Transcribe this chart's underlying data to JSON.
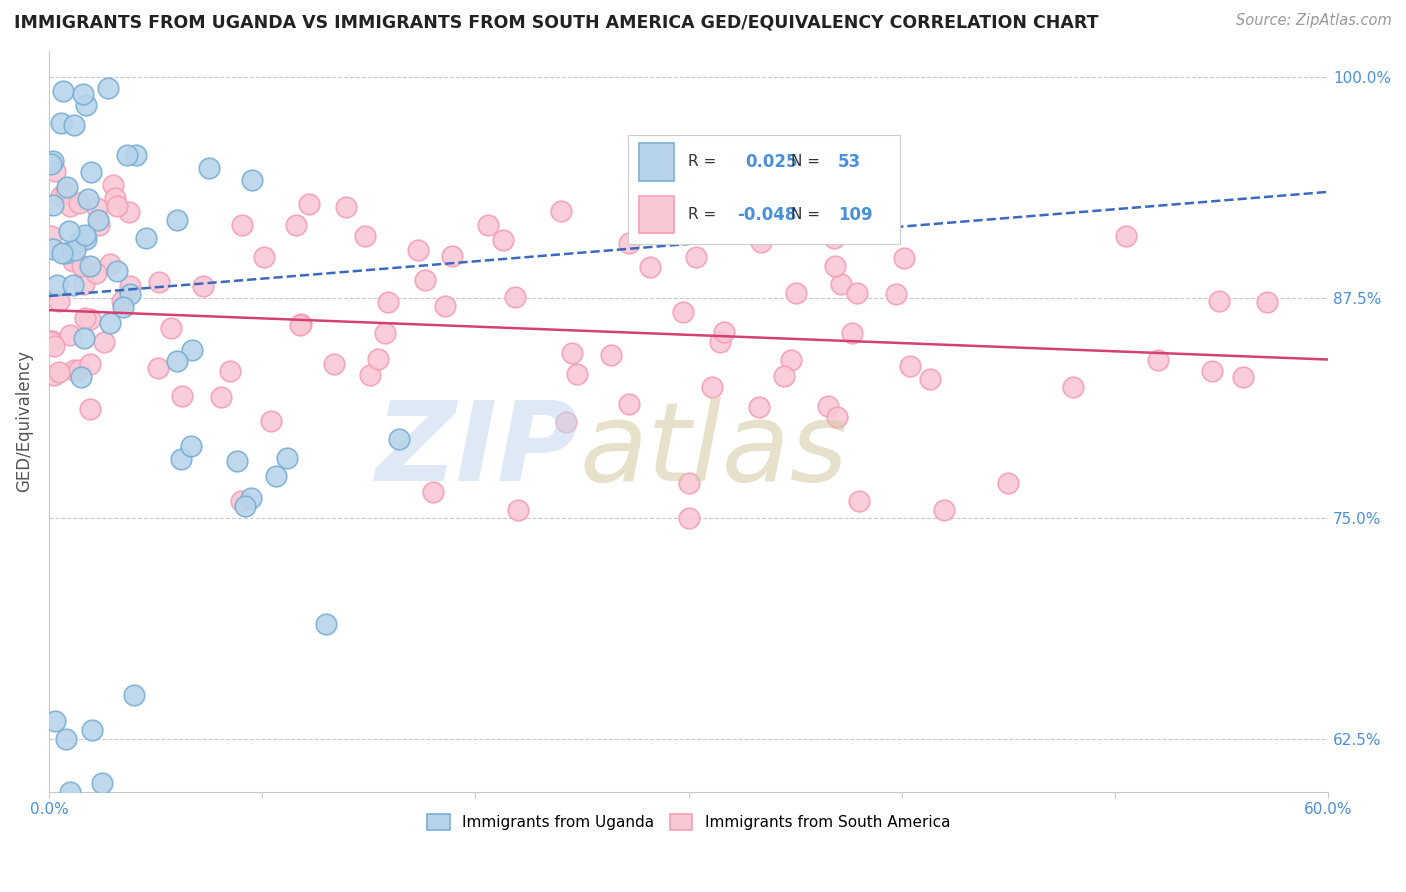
{
  "title": "IMMIGRANTS FROM UGANDA VS IMMIGRANTS FROM SOUTH AMERICA GED/EQUIVALENCY CORRELATION CHART",
  "source_text": "Source: ZipAtlas.com",
  "ylabel": "GED/Equivalency",
  "xlim": [
    0.0,
    0.6
  ],
  "ylim": [
    0.595,
    1.015
  ],
  "y_ticks_labeled": [
    0.625,
    0.75,
    0.875,
    1.0
  ],
  "y_ticks_labeled_str": [
    "62.5%",
    "75.0%",
    "87.5%",
    "100.0%"
  ],
  "x_ticks_labeled": [
    0.0,
    0.6
  ],
  "x_ticks_labeled_str": [
    "0.0%",
    "60.0%"
  ],
  "grid_color": "#c8c8c8",
  "background_color": "#ffffff",
  "blue_marker_face": "#b8d4ea",
  "blue_marker_edge": "#7bafd4",
  "pink_marker_face": "#f9c8d5",
  "pink_marker_edge": "#f4a0b5",
  "blue_line_color": "#3a6abf",
  "pink_line_color": "#d44070",
  "tick_color": "#4a90d9",
  "R_blue": 0.025,
  "R_pink": -0.048,
  "N_blue": 53,
  "N_pink": 109,
  "legend_label_blue": "Immigrants from Uganda",
  "legend_label_pink": "Immigrants from South America",
  "blue_trend_x0": 0.0,
  "blue_trend_y0": 0.876,
  "blue_trend_x1": 0.6,
  "blue_trend_y1": 0.935,
  "pink_trend_x0": 0.0,
  "pink_trend_y0": 0.868,
  "pink_trend_x1": 0.6,
  "pink_trend_y1": 0.84
}
